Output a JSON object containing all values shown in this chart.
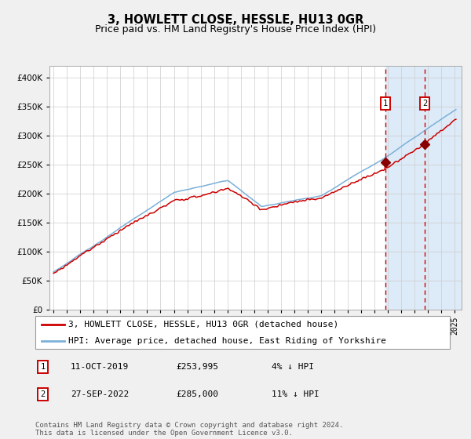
{
  "title": "3, HOWLETT CLOSE, HESSLE, HU13 0GR",
  "subtitle": "Price paid vs. HM Land Registry's House Price Index (HPI)",
  "hpi_label": "HPI: Average price, detached house, East Riding of Yorkshire",
  "property_label": "3, HOWLETT CLOSE, HESSLE, HU13 0GR (detached house)",
  "hpi_color": "#7ab0d9",
  "property_color": "#cc0000",
  "marker_color": "#880000",
  "highlight_color": "#ddeaf7",
  "dashed_line_color": "#cc0000",
  "ylim": [
    0,
    420000
  ],
  "x_start_year": 1995,
  "x_end_year": 2025,
  "sale1_year": 2019.79,
  "sale1_price": 253995,
  "sale2_year": 2022.75,
  "sale2_price": 285000,
  "ann1_date": "11-OCT-2019",
  "ann1_price": "£253,995",
  "ann1_note": "4% ↓ HPI",
  "ann2_date": "27-SEP-2022",
  "ann2_price": "£285,000",
  "ann2_note": "11% ↓ HPI",
  "background_color": "#f0f0f0",
  "plot_bg_color": "#ffffff",
  "grid_color": "#cccccc",
  "title_fontsize": 10.5,
  "subtitle_fontsize": 9,
  "tick_fontsize": 7.5,
  "legend_fontsize": 8,
  "footer_fontsize": 6.5,
  "footer": "Contains HM Land Registry data © Crown copyright and database right 2024.\nThis data is licensed under the Open Government Licence v3.0."
}
